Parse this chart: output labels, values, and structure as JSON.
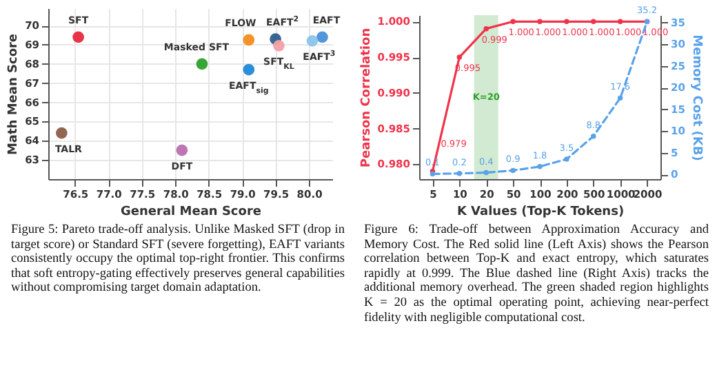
{
  "chart_data": [
    {
      "type": "scatter",
      "xlabel": "General Mean Score",
      "ylabel": "Math Mean Score",
      "xlim": [
        76.1,
        80.35
      ],
      "xticks": [
        {
          "value": 76.5,
          "label": "76.5"
        },
        {
          "value": 77,
          "label": "77.0"
        },
        {
          "value": 77.5,
          "label": "77.5"
        },
        {
          "value": 78,
          "label": "78.0"
        },
        {
          "value": 78.5,
          "label": "78.5"
        },
        {
          "value": 79,
          "label": "79.0"
        },
        {
          "value": 79.5,
          "label": "79.5"
        },
        {
          "value": 80,
          "label": "80.0"
        }
      ],
      "ylim": [
        62,
        70.9
      ],
      "yticks": [
        63,
        64,
        65,
        66,
        67,
        68,
        69,
        70
      ],
      "grid": true,
      "marker": "circle",
      "series": [
        {
          "name": "SFT",
          "color": "#e8283c",
          "x": [
            76.55
          ],
          "values": [
            69.4
          ]
        },
        {
          "name": "FLOW",
          "color": "#f28e1c",
          "x": [
            79.1
          ],
          "values": [
            69.25
          ]
        },
        {
          "name": "EAFT$^{2}$",
          "color": "#2d5f8e",
          "x": [
            79.5
          ],
          "values": [
            69.3
          ]
        },
        {
          "name": "EAFT",
          "color": "#4a90d9",
          "x": [
            80.2
          ],
          "values": [
            69.4
          ]
        },
        {
          "name": "EAFT$^{3}$",
          "color": "#8cc4ec",
          "x": [
            80.05
          ],
          "values": [
            69.2
          ]
        },
        {
          "name": "SFT$_{KL}$",
          "color": "#f4a0a8",
          "x": [
            79.55
          ],
          "values": [
            68.95
          ]
        },
        {
          "name": "Masked SFT",
          "color": "#2ca02c",
          "x": [
            78.4
          ],
          "values": [
            68.0
          ]
        },
        {
          "name": "EAFT$_{sig}$",
          "color": "#1f88d8",
          "x": [
            79.1
          ],
          "values": [
            67.7
          ]
        },
        {
          "name": "TALR",
          "color": "#8c5e4a",
          "x": [
            76.3
          ],
          "values": [
            64.4
          ]
        },
        {
          "name": "DFT",
          "color": "#b86fb0",
          "x": [
            78.1
          ],
          "values": [
            63.5
          ]
        }
      ],
      "annotations": [
        "Figure 5: Pareto trade-off analysis. Unlike Masked SFT (drop in target score) or Standard SFT (severe forgetting), EAFT variants consistently occupy the optimal top-right frontier. This confirms that soft entropy-gating effectively preserves general capabilities without compromising target domain adaptation."
      ]
    },
    {
      "type": "line",
      "xlabel": "K Values (Top-K Tokens)",
      "ylabel": "Pearson Correlation",
      "y2label": "Memory Cost (KB)",
      "categories": [
        "5",
        "10",
        "20",
        "50",
        "100",
        "200",
        "500",
        "1000",
        "2000"
      ],
      "ylim": [
        0.9779,
        1.0009
      ],
      "yticks": [
        {
          "value": 0.98,
          "label": "0.980"
        },
        {
          "value": 0.985,
          "label": "0.985"
        },
        {
          "value": 0.99,
          "label": "0.990"
        },
        {
          "value": 0.995,
          "label": "0.995"
        },
        {
          "value": 1.0,
          "label": "1.000"
        }
      ],
      "y2lim": [
        -1.1,
        36.7
      ],
      "y2ticks": [
        0,
        5,
        10,
        15,
        20,
        25,
        30,
        35
      ],
      "marker": "circle",
      "series": [
        {
          "color": "#f0334a",
          "axis": "y",
          "line_style": "solid",
          "values": [
            0.979,
            0.995,
            0.999,
            1.0,
            1.0,
            1.0,
            1.0,
            1.0,
            1.0
          ],
          "value_labels": [
            "0.979",
            "0.995",
            "0.999",
            "1.000",
            "1.000",
            "1.000",
            "1.000",
            "1.000",
            "1.000"
          ]
        },
        {
          "color": "#5aa2ea",
          "axis": "y2",
          "line_style": "dashed",
          "values": [
            0.1,
            0.2,
            0.4,
            0.9,
            1.8,
            3.5,
            8.8,
            17.6,
            35.2
          ],
          "value_labels": [
            "0.1",
            "0.2",
            "0.4",
            "0.9",
            "1.8",
            "3.5",
            "8.8",
            "17.6",
            "35.2"
          ]
        }
      ],
      "bands": [
        {
          "axis": "x",
          "from": "20",
          "to": "20",
          "label": "K=20",
          "color": "#2ca02c"
        }
      ],
      "annotations": [
        "Figure 6: Trade-off between Approximation Accuracy and Memory Cost. The Red solid line (Left Axis) shows the Pearson correlation between Top-K and exact entropy, which saturates rapidly at 0.999. The Blue dashed line (Right Axis) tracks the additional memory overhead. The green shaded region highlights K = 20 as the optimal operating point, achieving near-perfect fidelity with negligible computational cost."
      ]
    }
  ]
}
